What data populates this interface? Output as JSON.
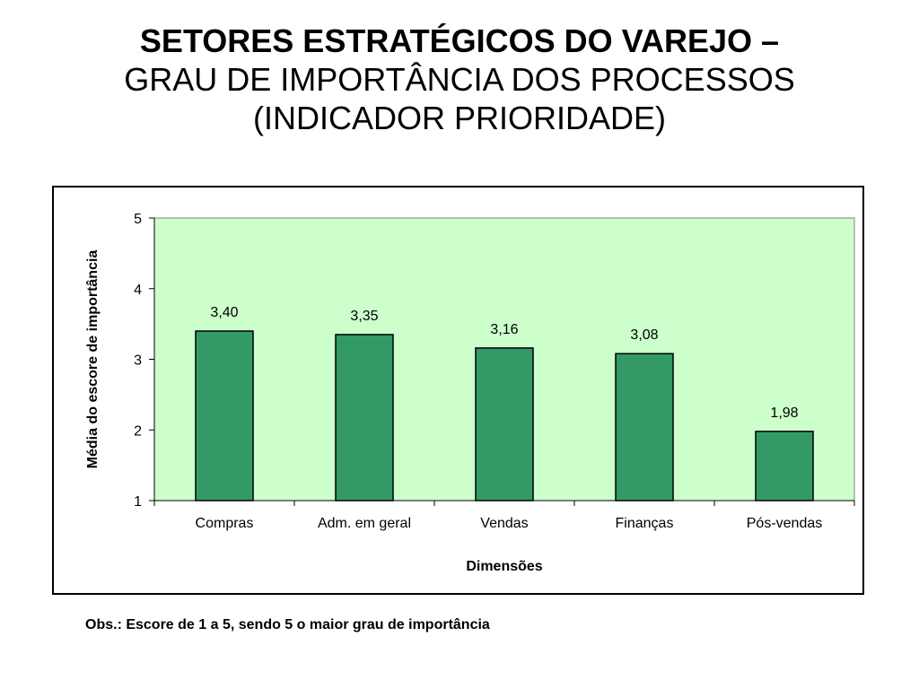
{
  "title": {
    "line1": "SETORES ESTRATÉGICOS DO VAREJO –",
    "line2": "GRAU DE IMPORTÂNCIA DOS PROCESSOS",
    "line3": "(INDICADOR PRIORIDADE)"
  },
  "note": "Obs.: Escore de 1 a 5, sendo 5 o maior grau de importância",
  "colors": {
    "bar": "#339966",
    "plot_bg": "#ccffcc",
    "axis": "#000000"
  },
  "chart_data": {
    "type": "bar",
    "categories": [
      "Compras",
      "Adm. em geral",
      "Vendas",
      "Finanças",
      "Pós-vendas"
    ],
    "values": [
      3.4,
      3.35,
      3.16,
      3.08,
      1.98
    ],
    "data_labels": [
      "3,40",
      "3,35",
      "3,16",
      "3,08",
      "1,98"
    ],
    "xlabel": "Dimensões",
    "ylabel": "Média do escore de importância",
    "ylim": [
      1,
      5
    ],
    "yticks": [
      "1",
      "2",
      "3",
      "4",
      "5"
    ],
    "grid": false,
    "legend": "none"
  }
}
